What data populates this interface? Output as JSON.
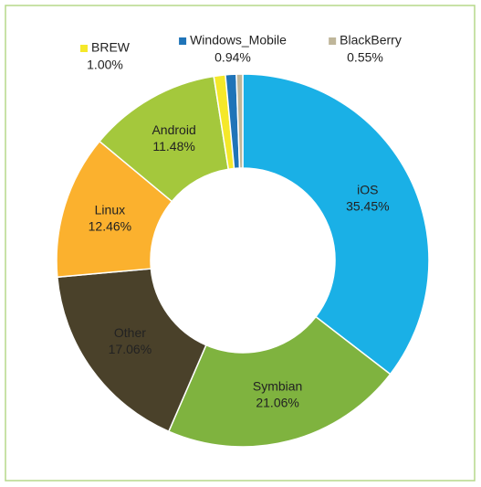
{
  "chart_data": {
    "type": "donut",
    "categories": [
      "iOS",
      "Symbian",
      "Other",
      "Linux",
      "Android",
      "BREW",
      "Windows_Mobile",
      "BlackBerry"
    ],
    "values": [
      35.45,
      21.06,
      17.06,
      12.46,
      11.48,
      1.0,
      0.94,
      0.55
    ],
    "value_labels": [
      "35.45%",
      "21.06%",
      "17.06%",
      "12.46%",
      "11.48%",
      "1.00%",
      "0.94%",
      "0.55%"
    ],
    "colors": [
      "#1ab0e6",
      "#7fb33f",
      "#4a412a",
      "#fbb12e",
      "#a4c83c",
      "#f5e82a",
      "#1f74b8",
      "#bfb69a"
    ]
  }
}
